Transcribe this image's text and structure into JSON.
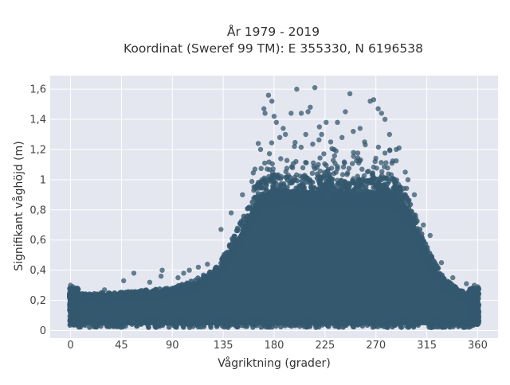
{
  "chart_data": {
    "type": "scatter",
    "title_line1": "År 1979 - 2019",
    "title_line2": "Koordinat (Sweref 99 TM): E 355330, N 6196538",
    "xlabel": "Vågriktning (grader)",
    "ylabel": "Signifikant våghöjd (m)",
    "xlim": [
      -18,
      378
    ],
    "ylim": [
      -0.05,
      1.69
    ],
    "x_ticks": [
      0,
      45,
      90,
      135,
      180,
      225,
      270,
      315,
      360
    ],
    "x_tick_labels": [
      "0",
      "45",
      "90",
      "135",
      "180",
      "225",
      "270",
      "315",
      "360"
    ],
    "y_ticks": [
      0,
      0.2,
      0.4,
      0.6,
      0.8,
      1.0,
      1.2,
      1.4,
      1.6
    ],
    "y_tick_labels": [
      "0",
      "0,2",
      "0,4",
      "0,6",
      "0,8",
      "1",
      "1,2",
      "1,4",
      "1,6"
    ],
    "grid": true,
    "legend": "none",
    "colors": {
      "marker": "#34586e",
      "plot_bg": "#e5e7f0",
      "grid": "#ffffff"
    },
    "envelope": {
      "note": "upper edge of the dense point cloud by wave direction",
      "x": [
        0,
        45,
        90,
        110,
        130,
        150,
        165,
        180,
        200,
        225,
        250,
        270,
        285,
        300,
        315,
        330,
        345,
        360
      ],
      "y": [
        0.24,
        0.25,
        0.28,
        0.33,
        0.42,
        0.7,
        0.95,
        1.02,
        1.0,
        1.0,
        0.98,
        1.0,
        1.0,
        0.85,
        0.55,
        0.34,
        0.26,
        0.24
      ]
    },
    "outliers": [
      {
        "x": 0,
        "y": 0.3
      },
      {
        "x": 2,
        "y": 0.29
      },
      {
        "x": 5,
        "y": 0.28
      },
      {
        "x": 30,
        "y": 0.27
      },
      {
        "x": 47,
        "y": 0.33
      },
      {
        "x": 56,
        "y": 0.38
      },
      {
        "x": 70,
        "y": 0.32
      },
      {
        "x": 80,
        "y": 0.36
      },
      {
        "x": 81,
        "y": 0.4
      },
      {
        "x": 95,
        "y": 0.35
      },
      {
        "x": 100,
        "y": 0.38
      },
      {
        "x": 105,
        "y": 0.4
      },
      {
        "x": 113,
        "y": 0.42
      },
      {
        "x": 121,
        "y": 0.44
      },
      {
        "x": 133,
        "y": 0.67
      },
      {
        "x": 142,
        "y": 0.78
      },
      {
        "x": 152,
        "y": 0.9
      },
      {
        "x": 163,
        "y": 1.07
      },
      {
        "x": 166,
        "y": 1.24
      },
      {
        "x": 168,
        "y": 1.2
      },
      {
        "x": 171,
        "y": 1.47
      },
      {
        "x": 172,
        "y": 1.44
      },
      {
        "x": 175,
        "y": 1.56
      },
      {
        "x": 178,
        "y": 1.52
      },
      {
        "x": 180,
        "y": 1.42
      },
      {
        "x": 182,
        "y": 1.38
      },
      {
        "x": 185,
        "y": 1.28
      },
      {
        "x": 188,
        "y": 1.34
      },
      {
        "x": 190,
        "y": 1.3
      },
      {
        "x": 195,
        "y": 1.44
      },
      {
        "x": 198,
        "y": 1.22
      },
      {
        "x": 200,
        "y": 1.6
      },
      {
        "x": 204,
        "y": 1.44
      },
      {
        "x": 208,
        "y": 1.3
      },
      {
        "x": 210,
        "y": 1.45
      },
      {
        "x": 212,
        "y": 1.48
      },
      {
        "x": 216,
        "y": 1.61
      },
      {
        "x": 220,
        "y": 1.35
      },
      {
        "x": 222,
        "y": 1.3
      },
      {
        "x": 226,
        "y": 1.38
      },
      {
        "x": 230,
        "y": 1.25
      },
      {
        "x": 233,
        "y": 1.2
      },
      {
        "x": 236,
        "y": 1.38
      },
      {
        "x": 240,
        "y": 1.28
      },
      {
        "x": 243,
        "y": 1.45
      },
      {
        "x": 247,
        "y": 1.57
      },
      {
        "x": 250,
        "y": 1.32
      },
      {
        "x": 256,
        "y": 1.34
      },
      {
        "x": 260,
        "y": 1.25
      },
      {
        "x": 265,
        "y": 1.52
      },
      {
        "x": 268,
        "y": 1.53
      },
      {
        "x": 272,
        "y": 1.47
      },
      {
        "x": 275,
        "y": 1.44
      },
      {
        "x": 278,
        "y": 1.4
      },
      {
        "x": 282,
        "y": 1.3
      },
      {
        "x": 288,
        "y": 1.2
      },
      {
        "x": 296,
        "y": 1.05
      },
      {
        "x": 304,
        "y": 0.9
      },
      {
        "x": 312,
        "y": 0.7
      },
      {
        "x": 318,
        "y": 0.63
      },
      {
        "x": 328,
        "y": 0.45
      },
      {
        "x": 338,
        "y": 0.35
      },
      {
        "x": 350,
        "y": 0.31
      },
      {
        "x": 357,
        "y": 0.3
      },
      {
        "x": 360,
        "y": 0.29
      }
    ]
  }
}
